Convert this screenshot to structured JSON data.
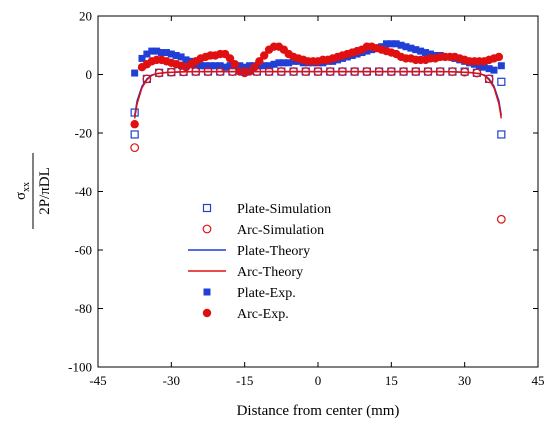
{
  "chart_data": {
    "type": "scatter",
    "xlabel": "Distance from center (mm)",
    "ylabel": {
      "numerator": "σ",
      "numerator_subscript": "xx",
      "denominator": "2P/πDL"
    },
    "xlim": [
      -45,
      45
    ],
    "ylim": [
      -100,
      20
    ],
    "xticks": [
      -45,
      -30,
      -15,
      0,
      15,
      30,
      45
    ],
    "yticks": [
      20,
      0,
      -20,
      -40,
      -60,
      -80,
      -100
    ],
    "grid": false,
    "legend_position": "center",
    "colors": {
      "blue": "#1f3fd6",
      "red": "#e01010"
    },
    "series": [
      {
        "name": "Plate-Simulation",
        "marker": "open-square",
        "color": "#1f3fd6",
        "x": [
          -37.5,
          -37.5,
          -35,
          -32.5,
          -30,
          -27.5,
          -25,
          -22.5,
          -20,
          -17.5,
          -15,
          -12.5,
          -10,
          -7.5,
          -5,
          -2.5,
          0,
          2.5,
          5,
          7.5,
          10,
          12.5,
          15,
          17.5,
          20,
          22.5,
          25,
          27.5,
          30,
          32.5,
          35,
          37.5,
          37.5
        ],
        "y": [
          -20.5,
          -13,
          -1.5,
          0.6,
          0.8,
          0.9,
          1,
          1,
          1,
          1,
          1,
          1,
          1,
          1,
          1,
          1,
          1,
          1,
          1,
          1,
          1,
          1,
          1,
          1,
          1,
          1,
          1,
          1,
          1,
          0.6,
          -1.5,
          -2.5,
          -20.5
        ]
      },
      {
        "name": "Arc-Simulation",
        "marker": "open-circle",
        "color": "#e01010",
        "x": [
          -37.5,
          -35,
          -32.5,
          -30,
          -27.5,
          -25,
          -22.5,
          -20,
          -17.5,
          -15,
          -12.5,
          -10,
          -7.5,
          -5,
          -2.5,
          0,
          2.5,
          5,
          7.5,
          10,
          12.5,
          15,
          17.5,
          20,
          22.5,
          25,
          27.5,
          30,
          32.5,
          35,
          37.5
        ],
        "y": [
          -25,
          -1.5,
          0.5,
          0.8,
          0.9,
          1,
          1,
          1,
          1,
          1,
          1,
          1,
          1,
          1,
          1,
          1,
          1,
          1,
          1,
          1,
          1,
          1,
          1,
          1,
          1,
          1,
          1,
          0.8,
          0.5,
          -1.5,
          -49.5
        ]
      },
      {
        "name": "Plate-Theory",
        "marker": "line",
        "color": "#1f3fd6",
        "x": [
          -37.5,
          -37,
          -36,
          -35,
          -34,
          -33,
          -31,
          -28,
          -25,
          0,
          25,
          28,
          31,
          33,
          34,
          35,
          36,
          37,
          37.5
        ],
        "y": [
          -14,
          -9,
          -4,
          -1.5,
          -0.2,
          0.3,
          0.7,
          0.9,
          1,
          1,
          1,
          0.9,
          0.7,
          0.3,
          -0.2,
          -1.5,
          -4,
          -9,
          -14
        ]
      },
      {
        "name": "Arc-Theory",
        "marker": "line",
        "color": "#e01010",
        "x": [
          -37.5,
          -37,
          -36,
          -35,
          -34,
          -33,
          -31,
          -28,
          -25,
          0,
          25,
          28,
          31,
          33,
          34,
          35,
          36,
          37,
          37.5
        ],
        "y": [
          -15,
          -10,
          -4.5,
          -1.8,
          -0.3,
          0.3,
          0.7,
          0.9,
          1,
          1,
          1,
          0.9,
          0.7,
          0.3,
          -0.3,
          -1.8,
          -4.5,
          -10,
          -15
        ]
      },
      {
        "name": "Plate-Exp.",
        "marker": "filled-square",
        "color": "#1f3fd6",
        "x": [
          -37.5,
          -36,
          -35,
          -34,
          -33,
          -32,
          -31,
          -30,
          -29,
          -28,
          -27,
          -26,
          -25,
          -24,
          -23,
          -22,
          -21,
          -20,
          -19,
          -18,
          -17,
          -16,
          -15,
          -14,
          -13,
          -12,
          -11,
          -10,
          -9,
          -8,
          -7,
          -6,
          -5,
          -4,
          -3,
          -2,
          -1,
          0,
          1,
          2,
          3,
          4,
          5,
          6,
          7,
          8,
          9,
          10,
          11,
          12,
          13,
          14,
          15,
          16,
          17,
          18,
          19,
          20,
          21,
          22,
          23,
          24,
          25,
          26,
          27,
          28,
          29,
          30,
          31,
          32,
          33,
          34,
          35,
          36,
          37.5
        ],
        "y": [
          0.5,
          5.5,
          7,
          8,
          8,
          7.5,
          7.5,
          7,
          6.5,
          6,
          5,
          4.5,
          3.5,
          3,
          3,
          3,
          3,
          3,
          2.5,
          3,
          3,
          3,
          2.5,
          3,
          3,
          3,
          3,
          3,
          3.5,
          4,
          4,
          4,
          4.5,
          4.5,
          4,
          4,
          4,
          4,
          4,
          4.5,
          4.5,
          5,
          5.5,
          6,
          6.5,
          7,
          7.5,
          8,
          8.5,
          9,
          9.5,
          10.5,
          10.5,
          10.5,
          10,
          9.5,
          9,
          8.5,
          8,
          7.5,
          7,
          6.5,
          6.5,
          6,
          6,
          5.5,
          5,
          4.5,
          4,
          3.5,
          3,
          2.5,
          2,
          1.5,
          3
        ]
      },
      {
        "name": "Arc-Exp.",
        "marker": "filled-circle",
        "color": "#e01010",
        "x": [
          -37.5,
          -36,
          -35,
          -34,
          -33,
          -32,
          -31,
          -30,
          -29,
          -28,
          -27,
          -26,
          -25,
          -24,
          -23,
          -22,
          -21,
          -20,
          -19,
          -18,
          -17,
          -16,
          -15,
          -14,
          -13,
          -12,
          -11,
          -10,
          -9,
          -8,
          -7,
          -6,
          -5,
          -4,
          -3,
          -2,
          -1,
          0,
          1,
          2,
          3,
          4,
          5,
          6,
          7,
          8,
          9,
          10,
          11,
          12,
          13,
          14,
          15,
          16,
          17,
          18,
          19,
          20,
          21,
          22,
          23,
          24,
          25,
          26,
          27,
          28,
          29,
          30,
          31,
          32,
          33,
          34,
          35,
          36,
          37
        ],
        "y": [
          -17,
          2.5,
          3.5,
          4.5,
          5,
          5,
          4.5,
          4,
          3.5,
          3,
          2.5,
          3.5,
          4.5,
          5.5,
          6,
          6.5,
          6.5,
          7,
          7,
          5.5,
          3.5,
          1,
          0.5,
          1,
          2.5,
          4.5,
          6.5,
          8.5,
          9.5,
          9.5,
          8.5,
          7,
          6,
          5.5,
          5,
          4.5,
          4.5,
          4.5,
          5,
          5,
          5.5,
          6,
          6.5,
          7,
          7.5,
          8,
          8.5,
          9.5,
          9.5,
          9,
          8.5,
          8,
          7.5,
          7,
          6,
          5.5,
          5.5,
          5,
          5,
          5,
          5.5,
          5.5,
          6,
          6,
          6,
          6,
          5.5,
          5,
          4.5,
          4.5,
          4.5,
          4.5,
          5,
          5.5,
          6
        ]
      }
    ]
  }
}
